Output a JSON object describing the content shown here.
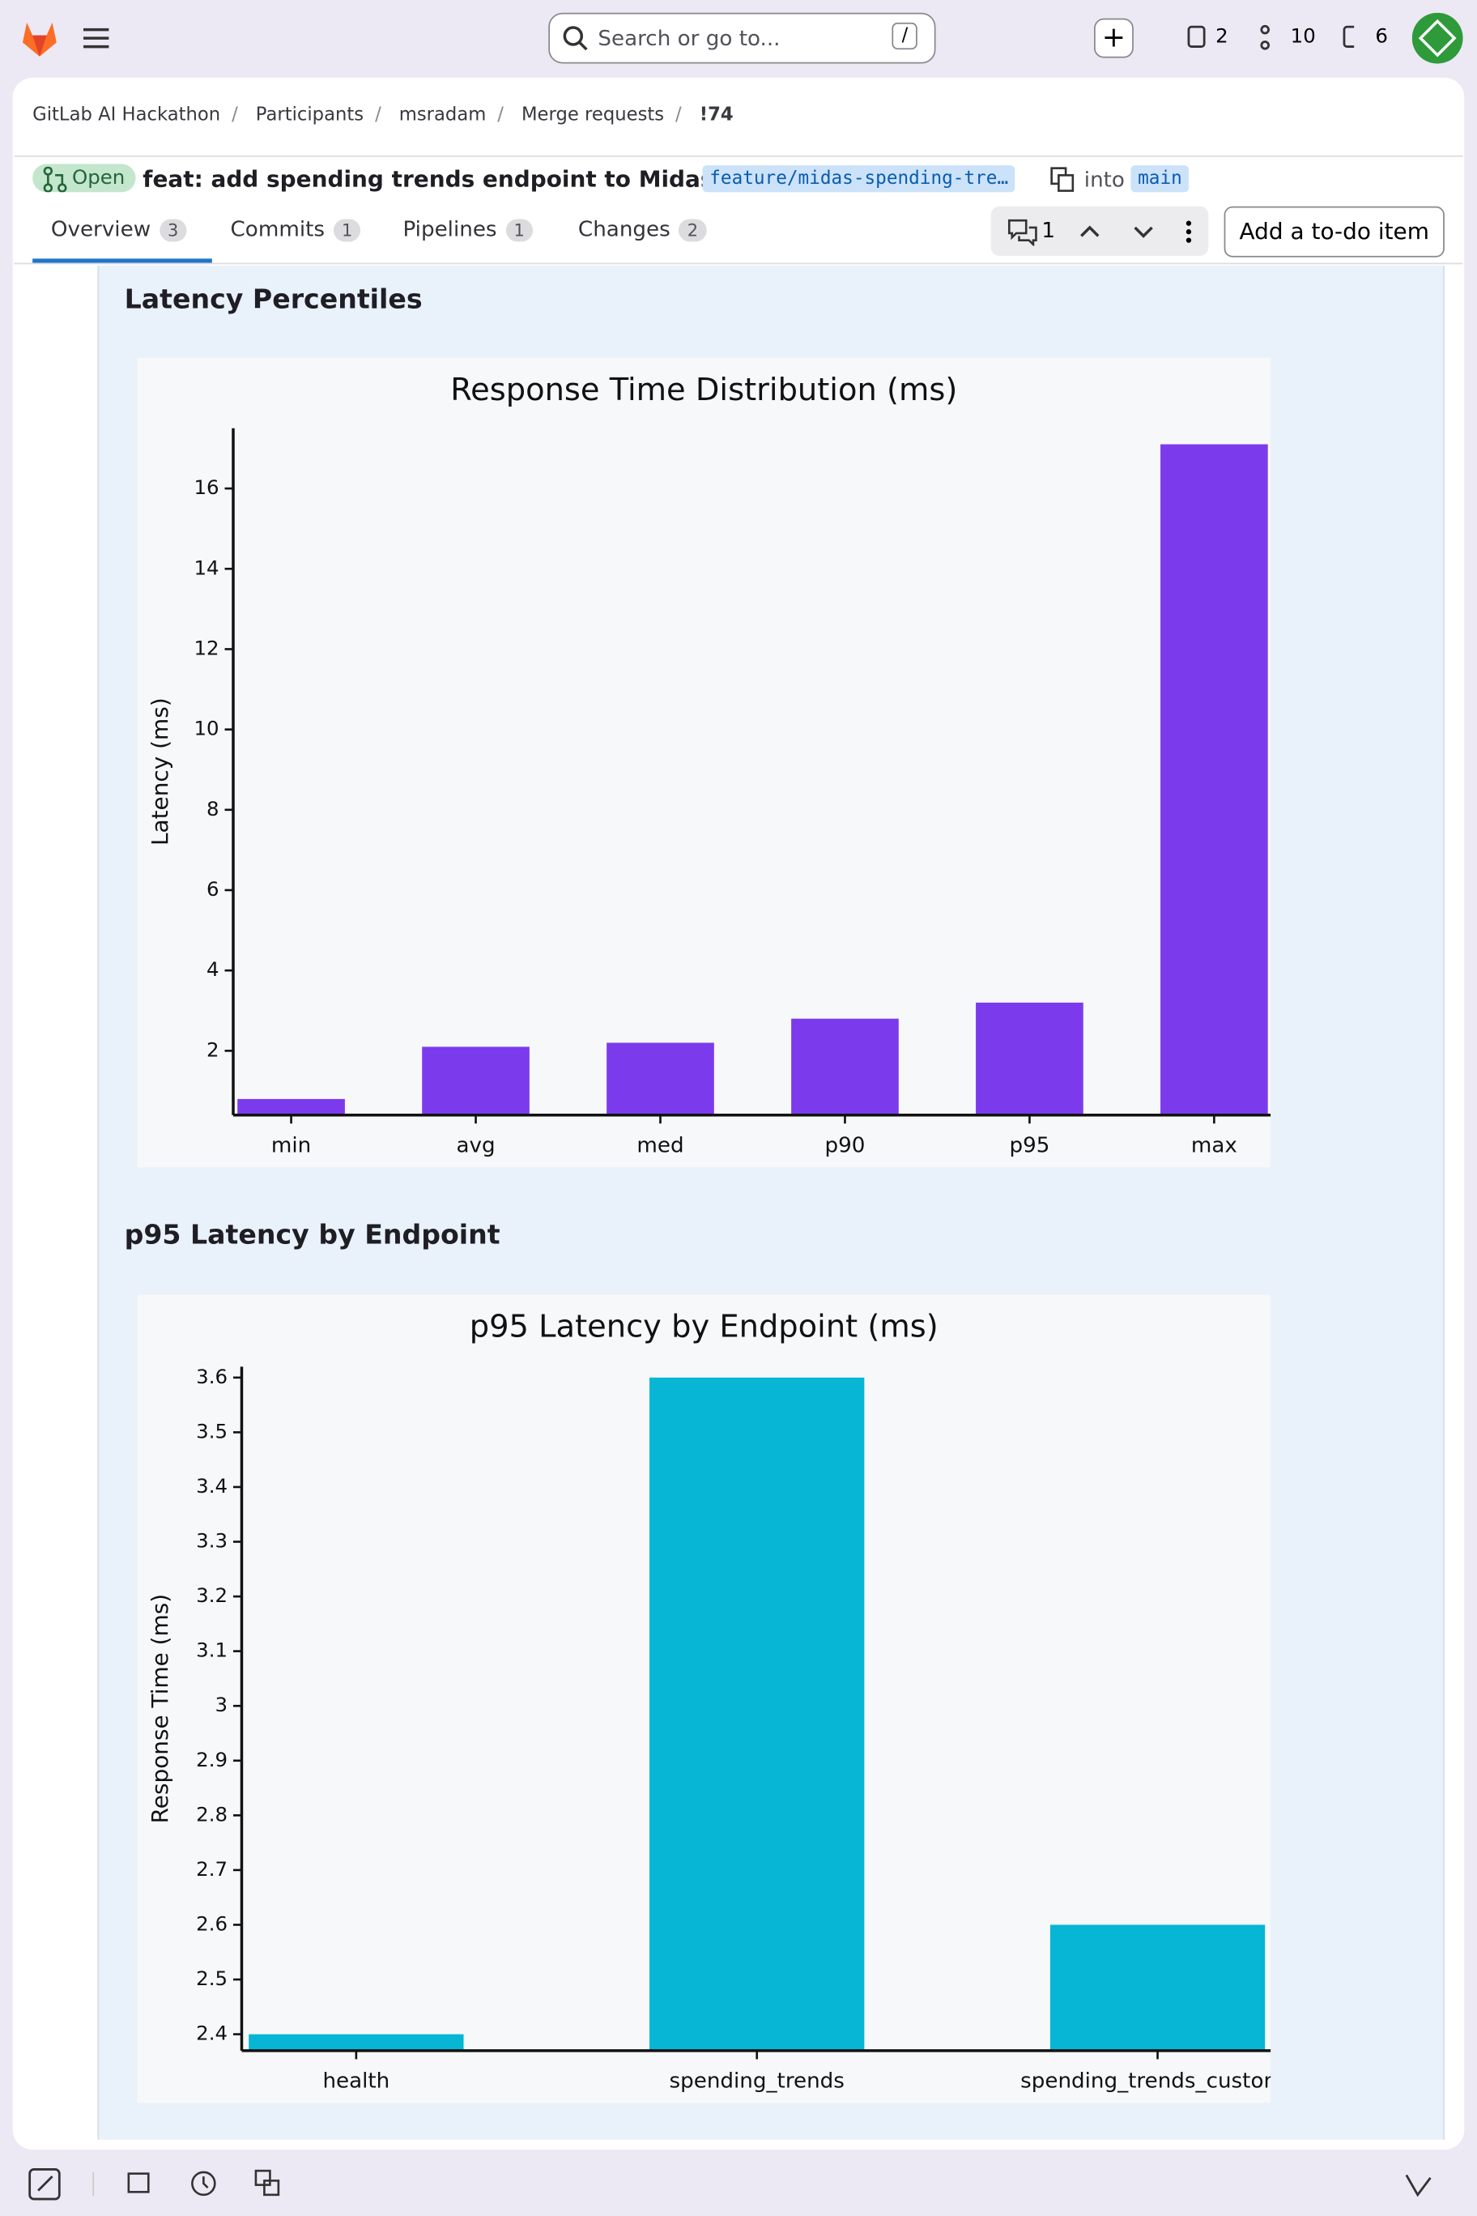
{
  "nav": {
    "search": "Search or go to...",
    "shortcut": "/",
    "counts": [
      2,
      10,
      6
    ]
  },
  "breadcrumb": [
    "GitLab AI Hackathon",
    "Participants",
    "msradam",
    "Merge requests",
    "!74"
  ],
  "mr": {
    "status": "Open",
    "title": "feat: add spending trends endpoint to Midas Bank",
    "source": "feature/midas-spending-tre…",
    "into": "into",
    "target": "main"
  },
  "tabs": [
    {
      "label": "Overview",
      "count": 3
    },
    {
      "label": "Commits",
      "count": 1
    },
    {
      "label": "Pipelines",
      "count": 1
    },
    {
      "label": "Changes",
      "count": 2
    }
  ],
  "discussions": 1,
  "todo": "Add a to-do item",
  "sections": [
    "Latency Percentiles",
    "p95 Latency by Endpoint"
  ],
  "chart_data": [
    {
      "type": "bar",
      "title": "Response Time Distribution (ms)",
      "y_label": "Latency (ms)",
      "categories": [
        "min",
        "avg",
        "med",
        "p90",
        "p95",
        "max"
      ],
      "values": [
        0.8,
        2.1,
        2.2,
        2.8,
        3.2,
        17.1
      ],
      "color": "#7c3aed",
      "ylim": [
        0.4,
        17.5
      ],
      "yticks": [
        2,
        4,
        6,
        8,
        10,
        12,
        14,
        16
      ]
    },
    {
      "type": "bar",
      "title": "p95 Latency by Endpoint (ms)",
      "y_label": "Response Time (ms)",
      "categories": [
        "health",
        "spending_trends",
        "spending_trends_custom_"
      ],
      "values": [
        2.4,
        3.6,
        2.6
      ],
      "color": "#06b6d4",
      "ylim": [
        2.37,
        3.62
      ],
      "yticks": [
        2.4,
        2.5,
        2.6,
        2.7,
        2.8,
        2.9,
        3,
        3.1,
        3.2,
        3.3,
        3.4,
        3.5,
        3.6
      ]
    }
  ]
}
